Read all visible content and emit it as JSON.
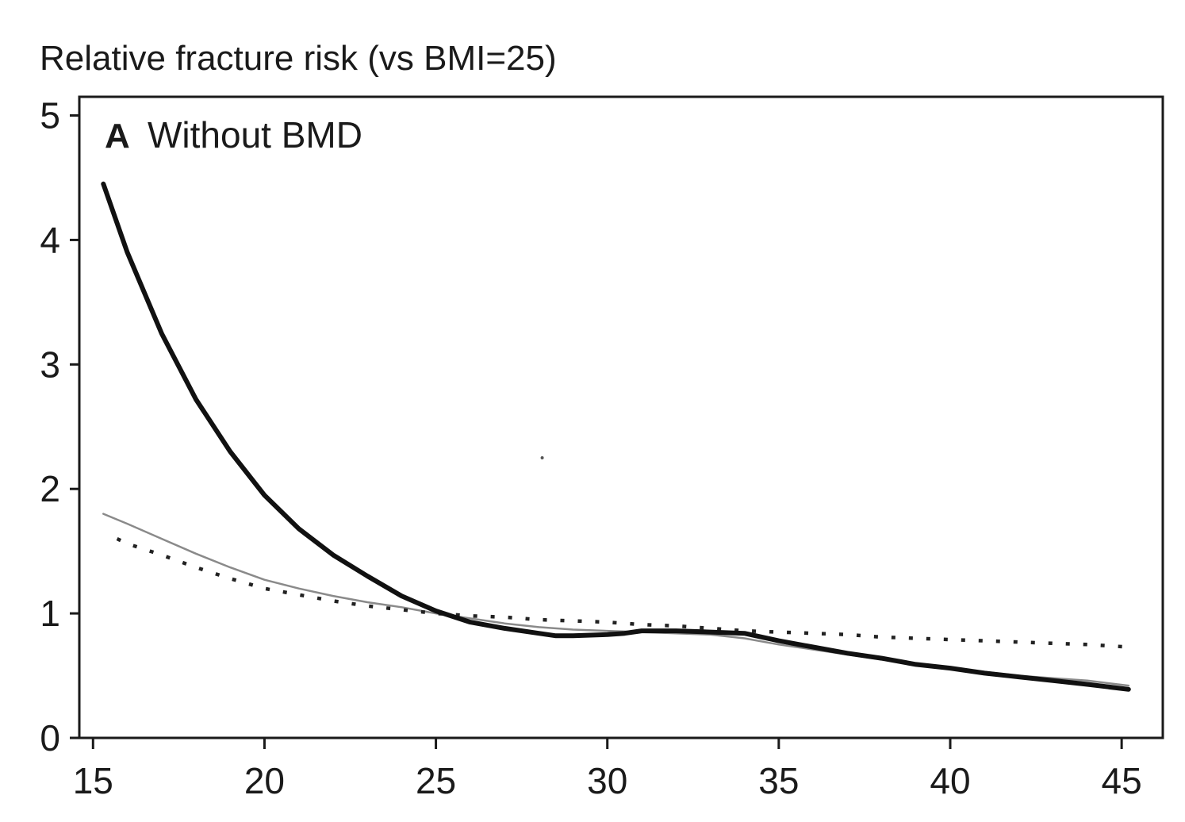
{
  "chart_data": {
    "type": "line",
    "ylabel": "Relative fracture risk (vs BMI=25)",
    "xlabel": "",
    "panel": {
      "letter": "A",
      "title": "Without BMD"
    },
    "xlim": [
      14.6,
      46.2
    ],
    "ylim": [
      0,
      5.15
    ],
    "xticks": [
      15,
      20,
      25,
      30,
      35,
      40,
      45
    ],
    "yticks": [
      0,
      1,
      2,
      3,
      4,
      5
    ],
    "grid": false,
    "series": [
      {
        "style": "thick-solid",
        "color": "#111111",
        "x": [
          15.3,
          16,
          17,
          18,
          19,
          20,
          21,
          22,
          23,
          24,
          25,
          26,
          27,
          28,
          28.5,
          29,
          30,
          30.5,
          31,
          32,
          33,
          34,
          35,
          36,
          37,
          38,
          39,
          40,
          41,
          42,
          43,
          44,
          45.2
        ],
        "y": [
          4.45,
          3.9,
          3.25,
          2.72,
          2.3,
          1.95,
          1.68,
          1.47,
          1.3,
          1.14,
          1.02,
          0.93,
          0.88,
          0.84,
          0.82,
          0.82,
          0.83,
          0.84,
          0.86,
          0.86,
          0.85,
          0.84,
          0.78,
          0.73,
          0.68,
          0.64,
          0.59,
          0.56,
          0.52,
          0.49,
          0.46,
          0.43,
          0.39
        ]
      },
      {
        "style": "thin-solid",
        "color": "#8a8a8a",
        "x": [
          15.3,
          16,
          17,
          18,
          19,
          20,
          21,
          22,
          23,
          24,
          25,
          26,
          27,
          28,
          29,
          30,
          31,
          32,
          33,
          34,
          35,
          36,
          37,
          38,
          39,
          40,
          41,
          42,
          43,
          44,
          45.2
        ],
        "y": [
          1.8,
          1.72,
          1.6,
          1.48,
          1.37,
          1.27,
          1.2,
          1.14,
          1.09,
          1.05,
          1.0,
          0.96,
          0.92,
          0.89,
          0.87,
          0.86,
          0.85,
          0.84,
          0.83,
          0.8,
          0.75,
          0.71,
          0.67,
          0.63,
          0.6,
          0.56,
          0.53,
          0.5,
          0.48,
          0.46,
          0.42
        ]
      },
      {
        "style": "dotted",
        "color": "#222222",
        "x": [
          15.7,
          16,
          17,
          18,
          19,
          20,
          21,
          22,
          23,
          24,
          25,
          26,
          27,
          28,
          29,
          30,
          31,
          32,
          33,
          34,
          35,
          36,
          37,
          38,
          39,
          40,
          41,
          42,
          43,
          44,
          45.2
        ],
        "y": [
          1.6,
          1.56,
          1.47,
          1.37,
          1.28,
          1.2,
          1.15,
          1.1,
          1.06,
          1.03,
          1.0,
          0.98,
          0.97,
          0.95,
          0.94,
          0.93,
          0.91,
          0.9,
          0.88,
          0.86,
          0.85,
          0.84,
          0.83,
          0.81,
          0.8,
          0.79,
          0.78,
          0.77,
          0.76,
          0.75,
          0.73
        ]
      }
    ],
    "annotation_dot": {
      "x": 28.1,
      "y": 2.25
    }
  }
}
